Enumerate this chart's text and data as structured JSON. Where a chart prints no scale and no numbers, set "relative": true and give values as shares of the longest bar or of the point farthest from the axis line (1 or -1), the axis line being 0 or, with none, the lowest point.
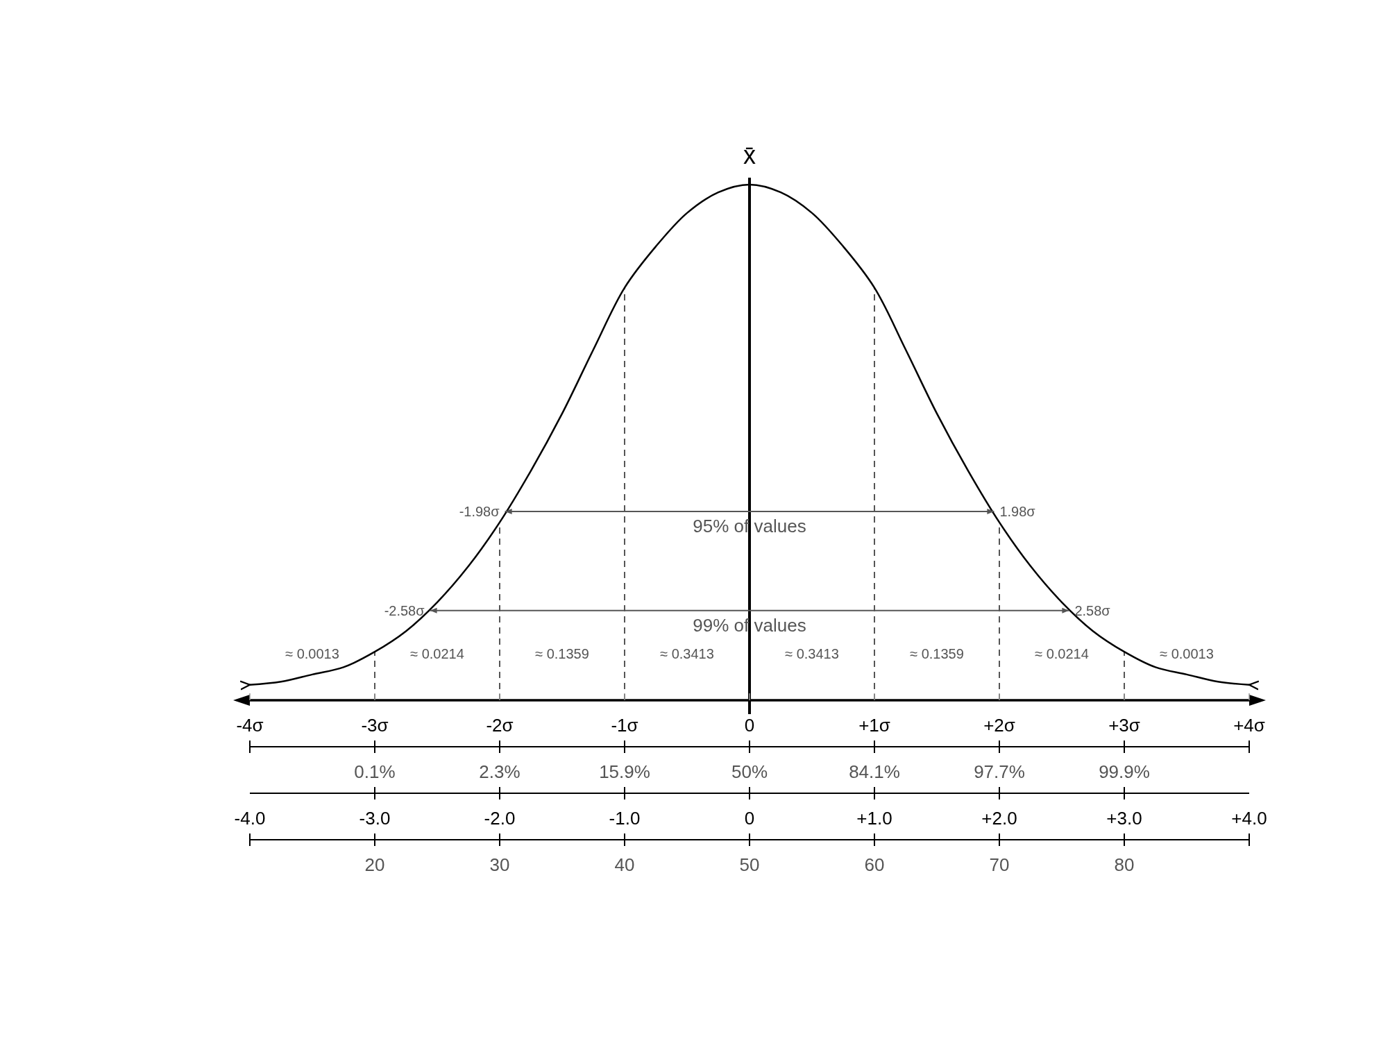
{
  "chart_data": {
    "type": "line",
    "relative": true,
    "x": [
      -4,
      -3.75,
      -3.5,
      -3.25,
      -3,
      -2.75,
      -2.5,
      -2.25,
      -2,
      -1.75,
      -1.5,
      -1.25,
      -1,
      -0.75,
      -0.5,
      -0.25,
      0,
      0.25,
      0.5,
      0.75,
      1,
      1.25,
      1.5,
      1.75,
      2,
      2.25,
      2.5,
      2.75,
      3,
      3.25,
      3.5,
      3.75,
      4
    ],
    "series": [
      {
        "color": "#000000",
        "values": [
          0.03,
          0.036,
          0.05,
          0.064,
          0.094,
          0.134,
          0.19,
          0.26,
          0.345,
          0.445,
          0.556,
          0.68,
          0.8,
          0.88,
          0.945,
          0.985,
          1,
          0.985,
          0.945,
          0.88,
          0.8,
          0.68,
          0.556,
          0.445,
          0.345,
          0.26,
          0.19,
          0.134,
          0.094,
          0.064,
          0.05,
          0.036,
          0.03
        ]
      }
    ],
    "xlim": [
      -4,
      4
    ],
    "xticks": [
      {
        "value": -4,
        "label": "-4σ"
      },
      {
        "value": -3,
        "label": "-3σ"
      },
      {
        "value": -2,
        "label": "-2σ"
      },
      {
        "value": -1,
        "label": "-1σ"
      },
      0,
      {
        "value": 1,
        "label": "+1σ"
      },
      {
        "value": 2,
        "label": "+2σ"
      },
      {
        "value": 3,
        "label": "+3σ"
      },
      {
        "value": 4,
        "label": "+4σ"
      }
    ],
    "x2lim": [
      10,
      90
    ],
    "x2ticks": [
      20,
      30,
      40,
      50,
      60,
      70,
      80
    ],
    "ref_lines": [
      {
        "axis": "x",
        "value": 0,
        "label": "x̄",
        "color": "#000000",
        "line_style": "solid"
      },
      {
        "axis": "x",
        "value": -3,
        "label": null,
        "color": "#555555",
        "line_style": "dashed"
      },
      {
        "axis": "x",
        "value": -2,
        "label": null,
        "color": "#555555",
        "line_style": "dashed"
      },
      {
        "axis": "x",
        "value": -1,
        "label": null,
        "color": "#555555",
        "line_style": "dashed"
      },
      {
        "axis": "x",
        "value": 1,
        "label": null,
        "color": "#555555",
        "line_style": "dashed"
      },
      {
        "axis": "x",
        "value": 2,
        "label": null,
        "color": "#555555",
        "line_style": "dashed"
      },
      {
        "axis": "x",
        "value": 3,
        "label": null,
        "color": "#555555",
        "line_style": "dashed"
      }
    ],
    "annotations": [
      {
        "text": "-1.98σ",
        "x": -1.98,
        "y": 0.366
      },
      {
        "text": "1.98σ",
        "x": 1.98,
        "y": 0.366
      },
      {
        "text": "95% of values",
        "x": 0,
        "y": 0.366
      },
      {
        "text": "-2.58σ",
        "x": -2.58,
        "y": 0.174
      },
      {
        "text": "2.58σ",
        "x": 2.58,
        "y": 0.174
      },
      {
        "text": "99% of values",
        "x": 0,
        "y": 0.174
      },
      "≈ 0.0013",
      "≈ 0.0214",
      "≈ 0.1359",
      "≈ 0.3413",
      "≈ 0.3413",
      "≈ 0.1359",
      "≈ 0.0214",
      "≈ 0.0013",
      "0.1%",
      "2.3%",
      "15.9%",
      "50%",
      "84.1%",
      "97.7%",
      "99.9%",
      "-4.0",
      "-3.0",
      "-2.0",
      "-1.0",
      "0",
      "+1.0",
      "+2.0",
      "+3.0",
      "+4.0"
    ]
  }
}
